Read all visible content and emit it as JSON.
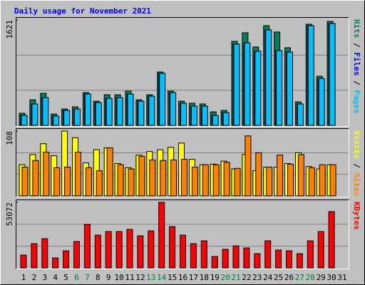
{
  "chart_data": [
    {
      "type": "bar",
      "title": "Daily usage for November 2021",
      "ylim": [
        0,
        1621
      ],
      "yticks": [
        1621
      ],
      "grid_divisions": 3,
      "legend_separator": " / ",
      "series": [
        {
          "name": "Hits",
          "color": "#00805c",
          "values": [
            186,
            394,
            493,
            175,
            252,
            285,
            504,
            372,
            471,
            471,
            526,
            394,
            471,
            821,
            526,
            372,
            340,
            329,
            208,
            230,
            1292,
            1424,
            1205,
            1533,
            1435,
            1194,
            361,
            1555,
            756,
            1599,
            null
          ]
        },
        {
          "name": "Files",
          "color": "#0000ff",
          "values": [
            153,
            329,
            427,
            142,
            230,
            252,
            482,
            350,
            416,
            427,
            482,
            372,
            449,
            800,
            504,
            340,
            296,
            296,
            153,
            197,
            1249,
            1270,
            1139,
            1468,
            1150,
            1128,
            329,
            1533,
            723,
            1566,
            null
          ]
        },
        {
          "name": "Pages",
          "color": "#00c0ff",
          "values": [
            153,
            329,
            427,
            142,
            230,
            252,
            482,
            350,
            416,
            427,
            482,
            372,
            449,
            800,
            504,
            340,
            296,
            296,
            153,
            197,
            1249,
            1270,
            1139,
            1468,
            1150,
            1128,
            329,
            1533,
            723,
            1566,
            null
          ]
        }
      ]
    },
    {
      "type": "bar",
      "ylim": [
        0,
        108
      ],
      "yticks": [
        108
      ],
      "grid_divisions": 3,
      "legend_separator": " / ",
      "series": [
        {
          "name": "Visits",
          "color": "#ffff00",
          "values": [
            52,
            69,
            87,
            67,
            108,
            97,
            55,
            77,
            80,
            54,
            47,
            68,
            74,
            77,
            81,
            88,
            61,
            52,
            53,
            58,
            45,
            69,
            42,
            48,
            48,
            54,
            72,
            49,
            45,
            52,
            null
          ]
        },
        {
          "name": "Sites",
          "color": "#ff8000",
          "values": [
            48,
            59,
            73,
            47,
            48,
            73,
            47,
            42,
            80,
            52,
            45,
            66,
            60,
            59,
            60,
            61,
            48,
            52,
            52,
            56,
            46,
            100,
            72,
            48,
            68,
            53,
            69,
            47,
            52,
            52,
            null
          ]
        }
      ]
    },
    {
      "type": "bar",
      "ylim": [
        0,
        53072
      ],
      "yticks": [
        53072
      ],
      "grid_divisions": 3,
      "categories": [
        "1",
        "2",
        "3",
        "4",
        "5",
        "6",
        "7",
        "8",
        "9",
        "10",
        "11",
        "12",
        "13",
        "14",
        "15",
        "16",
        "17",
        "18",
        "19",
        "20",
        "21",
        "22",
        "23",
        "24",
        "25",
        "26",
        "27",
        "28",
        "29",
        "30",
        "31"
      ],
      "category_colors": [
        "#000000",
        "#000000",
        "#000000",
        "#000000",
        "#000000",
        "#008040",
        "#008040",
        "#000000",
        "#000000",
        "#000000",
        "#000000",
        "#000000",
        "#008040",
        "#008040",
        "#000000",
        "#000000",
        "#000000",
        "#000000",
        "#000000",
        "#008040",
        "#008040",
        "#000000",
        "#000000",
        "#000000",
        "#000000",
        "#000000",
        "#008040",
        "#008040",
        "#000000",
        "#000000",
        "#000000"
      ],
      "series": [
        {
          "name": "KBytes",
          "color": "#ff0000",
          "values": [
            10384,
            19614,
            23652,
            8077,
            13845,
            21345,
            35192,
            26537,
            29422,
            29422,
            31152,
            25960,
            29999,
            53072,
            33460,
            26537,
            19614,
            21922,
            9230,
            15000,
            17884,
            16152,
            11538,
            21922,
            14422,
            13845,
            11538,
            21922,
            29422,
            45575,
            null
          ]
        }
      ]
    }
  ]
}
